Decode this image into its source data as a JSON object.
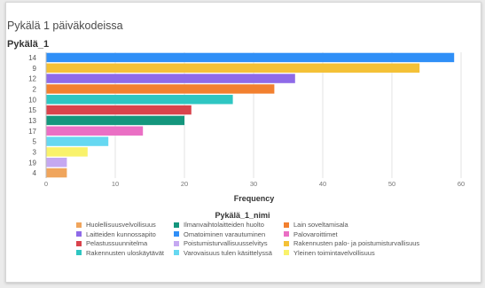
{
  "chart_data": {
    "type": "bar",
    "orientation": "horizontal",
    "title": "Pykälä 1 päiväkodeissa",
    "ylabel": "Pykälä_1",
    "xlabel": "Frequency",
    "xlim": [
      0,
      60
    ],
    "xticks": [
      "0",
      "10",
      "20",
      "30",
      "40",
      "50",
      "60"
    ],
    "grid": true,
    "categories": [
      "14",
      "9",
      "12",
      "2",
      "10",
      "15",
      "13",
      "17",
      "5",
      "3",
      "19",
      "4"
    ],
    "values": [
      59,
      54,
      36,
      33,
      27,
      21,
      20,
      14,
      9,
      6,
      3,
      3
    ],
    "bar_colors": [
      "#2f8ff7",
      "#f4c136",
      "#8e6ae8",
      "#f2802f",
      "#2ec6c2",
      "#d9434c",
      "#14967d",
      "#ea6fc4",
      "#66d8f1",
      "#f9f26b",
      "#c5a8f1",
      "#f0a55c"
    ],
    "legend": {
      "title": "Pykälä_1_nimi",
      "placement": "bottom",
      "items": [
        {
          "label": "Huolellisuusvelvollisuus",
          "color": "#f0a55c"
        },
        {
          "label": "Ilmanvaihtolaitteiden huolto",
          "color": "#14967d"
        },
        {
          "label": "Lain soveltamisala",
          "color": "#f2802f"
        },
        {
          "label": "Laitteiden kunnossapito",
          "color": "#8e6ae8"
        },
        {
          "label": "Omatoiminen varautuminen",
          "color": "#2f8ff7"
        },
        {
          "label": "Palovaroittimet",
          "color": "#ea6fc4"
        },
        {
          "label": "Pelastussuunnitelma",
          "color": "#d9434c"
        },
        {
          "label": "Poistumisturvallisuusselvitys",
          "color": "#c5a8f1"
        },
        {
          "label": "Rakennusten palo- ja poistumisturvallisuus",
          "color": "#f4c136"
        },
        {
          "label": "Rakennusten uloskäytävät",
          "color": "#2ec6c2"
        },
        {
          "label": "Varovaisuus tulen käsittelyssä",
          "color": "#66d8f1"
        },
        {
          "label": "Yleinen toimintavelvollisuus",
          "color": "#f9f26b"
        }
      ]
    }
  }
}
